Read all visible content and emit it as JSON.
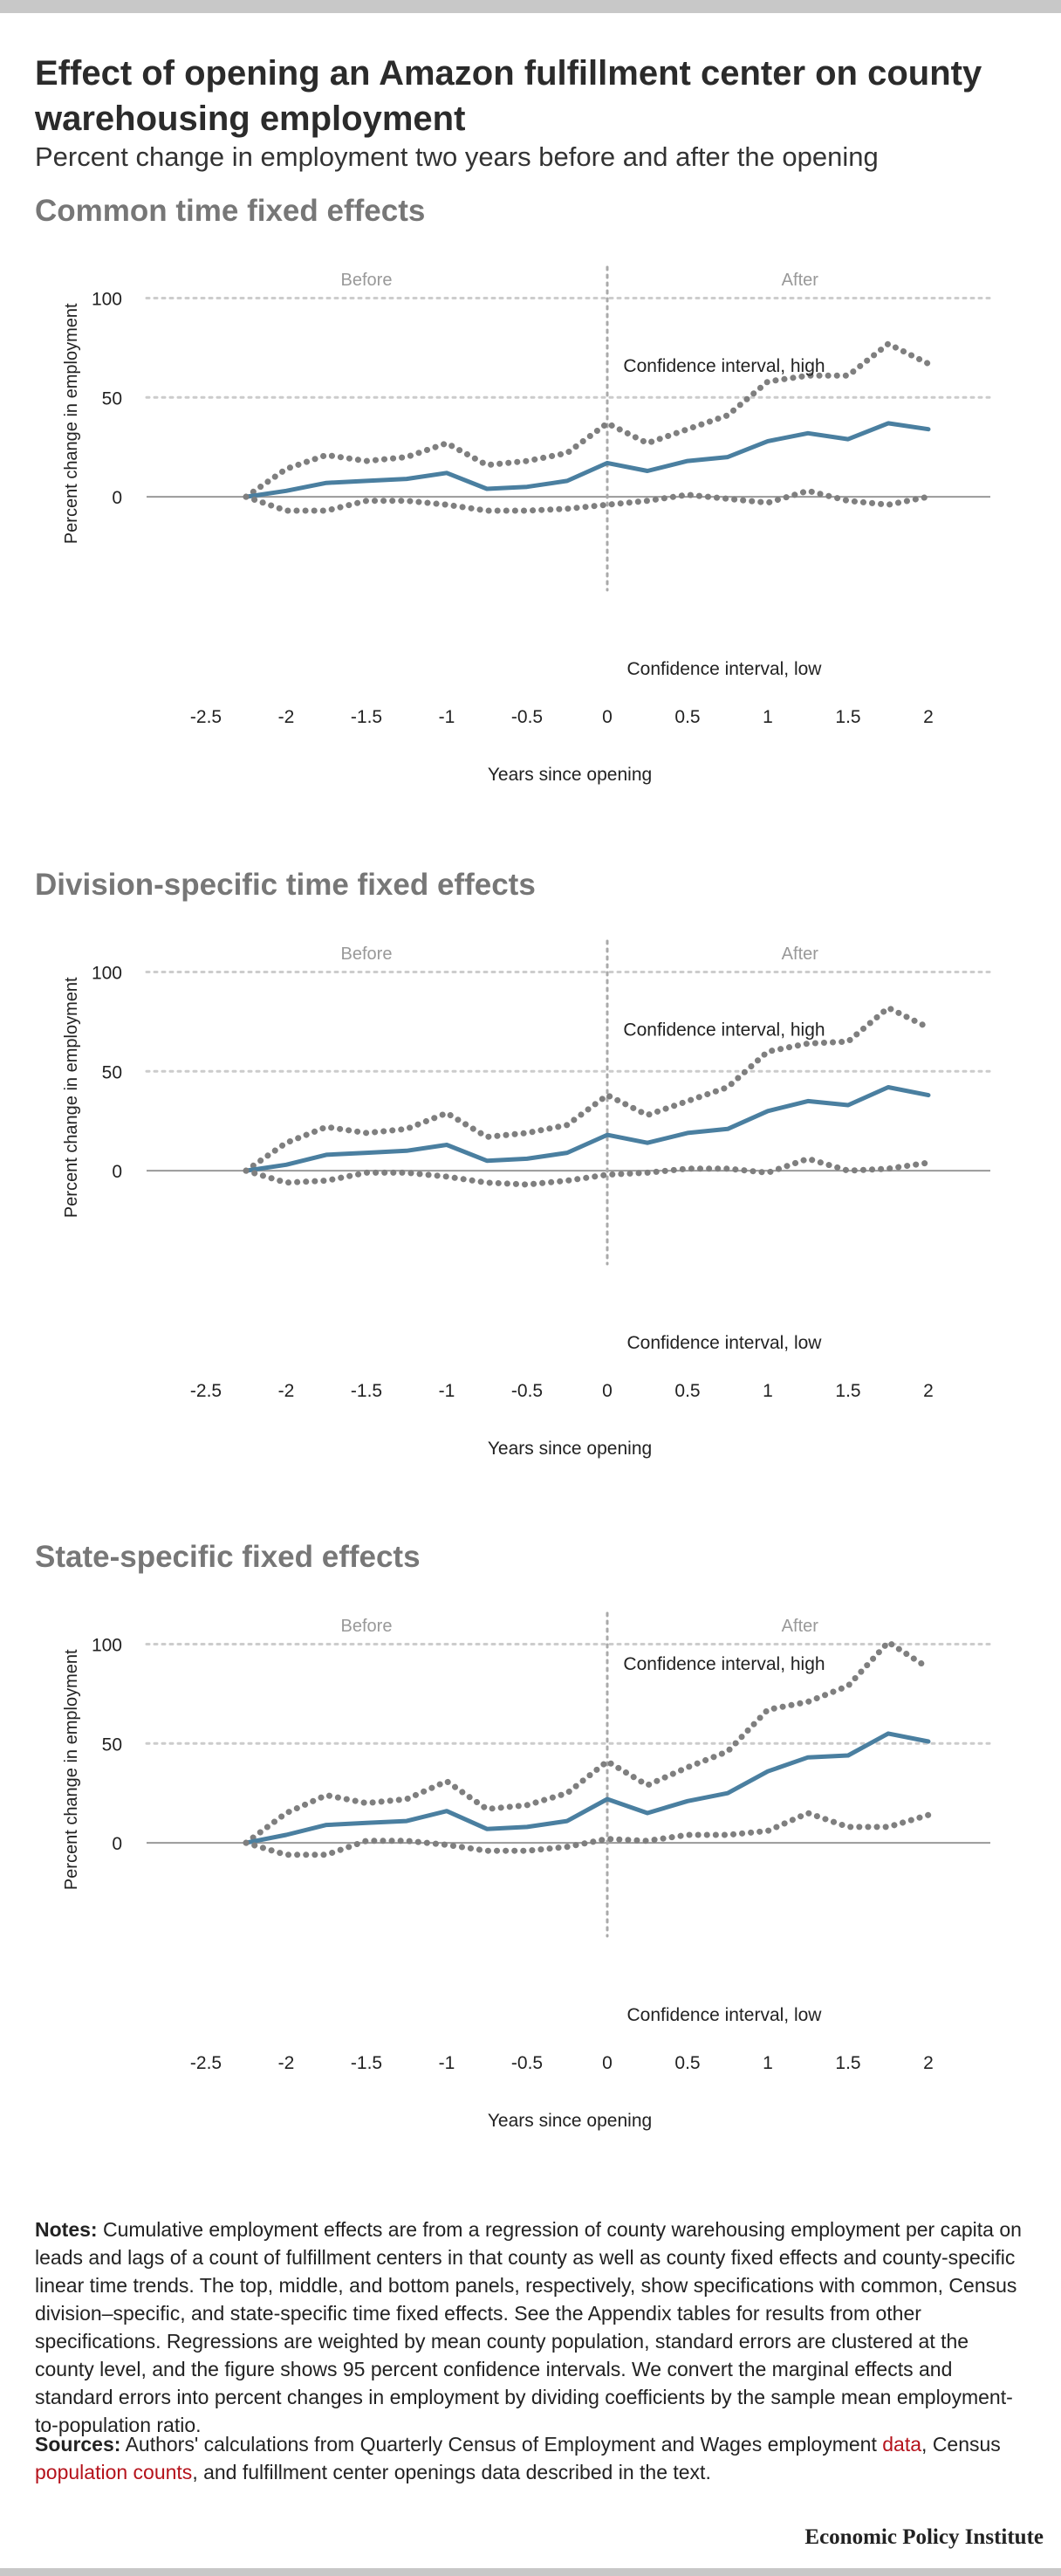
{
  "title": "Effect of opening an Amazon fulfillment center on county warehousing employment",
  "subtitle": "Percent change in employment two years before and after the opening",
  "chart_data": [
    {
      "type": "line",
      "title": "Common time fixed effects",
      "before_label": "Before",
      "after_label": "After",
      "xlabel": "Years since opening",
      "ylabel": "Percent change in employment",
      "xlim": [
        -2.75,
        2.25
      ],
      "ylim": [
        -25,
        120
      ],
      "xticks": [
        "-2.5",
        "-2",
        "-1.5",
        "-1",
        "-0.5",
        "0",
        "0.5",
        "1",
        "1.5",
        "2"
      ],
      "yticks": [
        "100",
        "50",
        "0"
      ],
      "grid": true,
      "x": [
        -2.25,
        -2,
        -1.75,
        -1.5,
        -1.25,
        -1,
        -0.75,
        -0.5,
        -0.25,
        0,
        0.25,
        0.5,
        0.75,
        1,
        1.25,
        1.5,
        1.75,
        2
      ],
      "series": [
        {
          "name": "Confidence interval, high",
          "style": "dotted",
          "color": "#7f7f7f",
          "values": [
            0,
            14,
            21,
            18,
            20,
            27,
            16,
            18,
            22,
            37,
            27,
            34,
            41,
            58,
            61,
            61,
            77,
            67
          ]
        },
        {
          "name": "",
          "style": "solid",
          "color": "#4a7fa0",
          "values": [
            0,
            3,
            7,
            8,
            9,
            12,
            4,
            5,
            8,
            17,
            13,
            18,
            20,
            28,
            32,
            29,
            37,
            34
          ]
        },
        {
          "name": "Confidence interval, low",
          "style": "dotted",
          "color": "#7f7f7f",
          "values": [
            0,
            -7,
            -7,
            -2,
            -2,
            -4,
            -7,
            -7,
            -6,
            -4,
            -2,
            1,
            -1,
            -3,
            3,
            -2,
            -4,
            0
          ]
        }
      ]
    },
    {
      "type": "line",
      "title": "Division-specific time fixed effects",
      "before_label": "Before",
      "after_label": "After",
      "xlabel": "Years since opening",
      "ylabel": "Percent change in employment",
      "xlim": [
        -2.75,
        2.25
      ],
      "ylim": [
        -25,
        120
      ],
      "xticks": [
        "-2.5",
        "-2",
        "-1.5",
        "-1",
        "-0.5",
        "0",
        "0.5",
        "1",
        "1.5",
        "2"
      ],
      "yticks": [
        "100",
        "50",
        "0"
      ],
      "grid": true,
      "x": [
        -2.25,
        -2,
        -1.75,
        -1.5,
        -1.25,
        -1,
        -0.75,
        -0.5,
        -0.25,
        0,
        0.25,
        0.5,
        0.75,
        1,
        1.25,
        1.5,
        1.75,
        2
      ],
      "series": [
        {
          "name": "Confidence interval, high",
          "style": "dotted",
          "color": "#7f7f7f",
          "values": [
            0,
            14,
            22,
            19,
            21,
            29,
            17,
            19,
            23,
            38,
            28,
            35,
            42,
            60,
            64,
            65,
            82,
            72
          ]
        },
        {
          "name": "",
          "style": "solid",
          "color": "#4a7fa0",
          "values": [
            0,
            3,
            8,
            9,
            10,
            13,
            5,
            6,
            9,
            18,
            14,
            19,
            21,
            30,
            35,
            33,
            42,
            38
          ]
        },
        {
          "name": "Confidence interval, low",
          "style": "dotted",
          "color": "#7f7f7f",
          "values": [
            0,
            -6,
            -5,
            -1,
            -1,
            -3,
            -6,
            -7,
            -5,
            -2,
            -1,
            1,
            1,
            -1,
            6,
            0,
            1,
            4
          ]
        }
      ]
    },
    {
      "type": "line",
      "title": "State-specific fixed effects",
      "before_label": "Before",
      "after_label": "After",
      "xlabel": "Years since opening",
      "ylabel": "Percent change in employment",
      "xlim": [
        -2.75,
        2.25
      ],
      "ylim": [
        -25,
        120
      ],
      "xticks": [
        "-2.5",
        "-2",
        "-1.5",
        "-1",
        "-0.5",
        "0",
        "0.5",
        "1",
        "1.5",
        "2"
      ],
      "yticks": [
        "100",
        "50",
        "0"
      ],
      "grid": true,
      "x": [
        -2.25,
        -2,
        -1.75,
        -1.5,
        -1.25,
        -1,
        -0.75,
        -0.5,
        -0.25,
        0,
        0.25,
        0.5,
        0.75,
        1,
        1.25,
        1.5,
        1.75,
        2
      ],
      "series": [
        {
          "name": "Confidence interval, high",
          "style": "dotted",
          "color": "#7f7f7f",
          "values": [
            0,
            15,
            24,
            20,
            22,
            31,
            17,
            19,
            25,
            41,
            29,
            38,
            46,
            67,
            71,
            79,
            101,
            88
          ]
        },
        {
          "name": "",
          "style": "solid",
          "color": "#4a7fa0",
          "values": [
            0,
            4,
            9,
            10,
            11,
            16,
            7,
            8,
            11,
            22,
            15,
            21,
            25,
            36,
            43,
            44,
            55,
            51
          ]
        },
        {
          "name": "Confidence interval, low",
          "style": "dotted",
          "color": "#7f7f7f",
          "values": [
            0,
            -6,
            -6,
            1,
            1,
            -1,
            -4,
            -4,
            -2,
            2,
            1,
            4,
            4,
            6,
            15,
            8,
            8,
            14
          ]
        }
      ]
    }
  ],
  "notes": {
    "label": "Notes:",
    "text": "Cumulative employment effects are from a regression of county warehousing employment per capita on leads and lags of a count of fulfillment centers in that county as well as county fixed effects and county-specific linear time trends. The top, middle, and bottom panels, respectively, show specifications with common, Census division–specific, and state-specific time fixed effects. See the Appendix tables for results from other specifications. Regressions are weighted by mean county population, standard errors are clustered at the county level, and the figure shows 95 percent confidence intervals. We convert the marginal effects and standard errors into percent changes in employment by dividing coefficients by the sample mean employment-to-population ratio."
  },
  "sources": {
    "label": "Sources:",
    "text1": "Authors' calculations from Quarterly Census of Employment and Wages employment",
    "link1": "data",
    "text2": ",",
    "text3": "Census",
    "link2": "population counts",
    "text4": ", and fulfillment center openings data described in the text."
  },
  "brand": "Economic Policy Institute"
}
